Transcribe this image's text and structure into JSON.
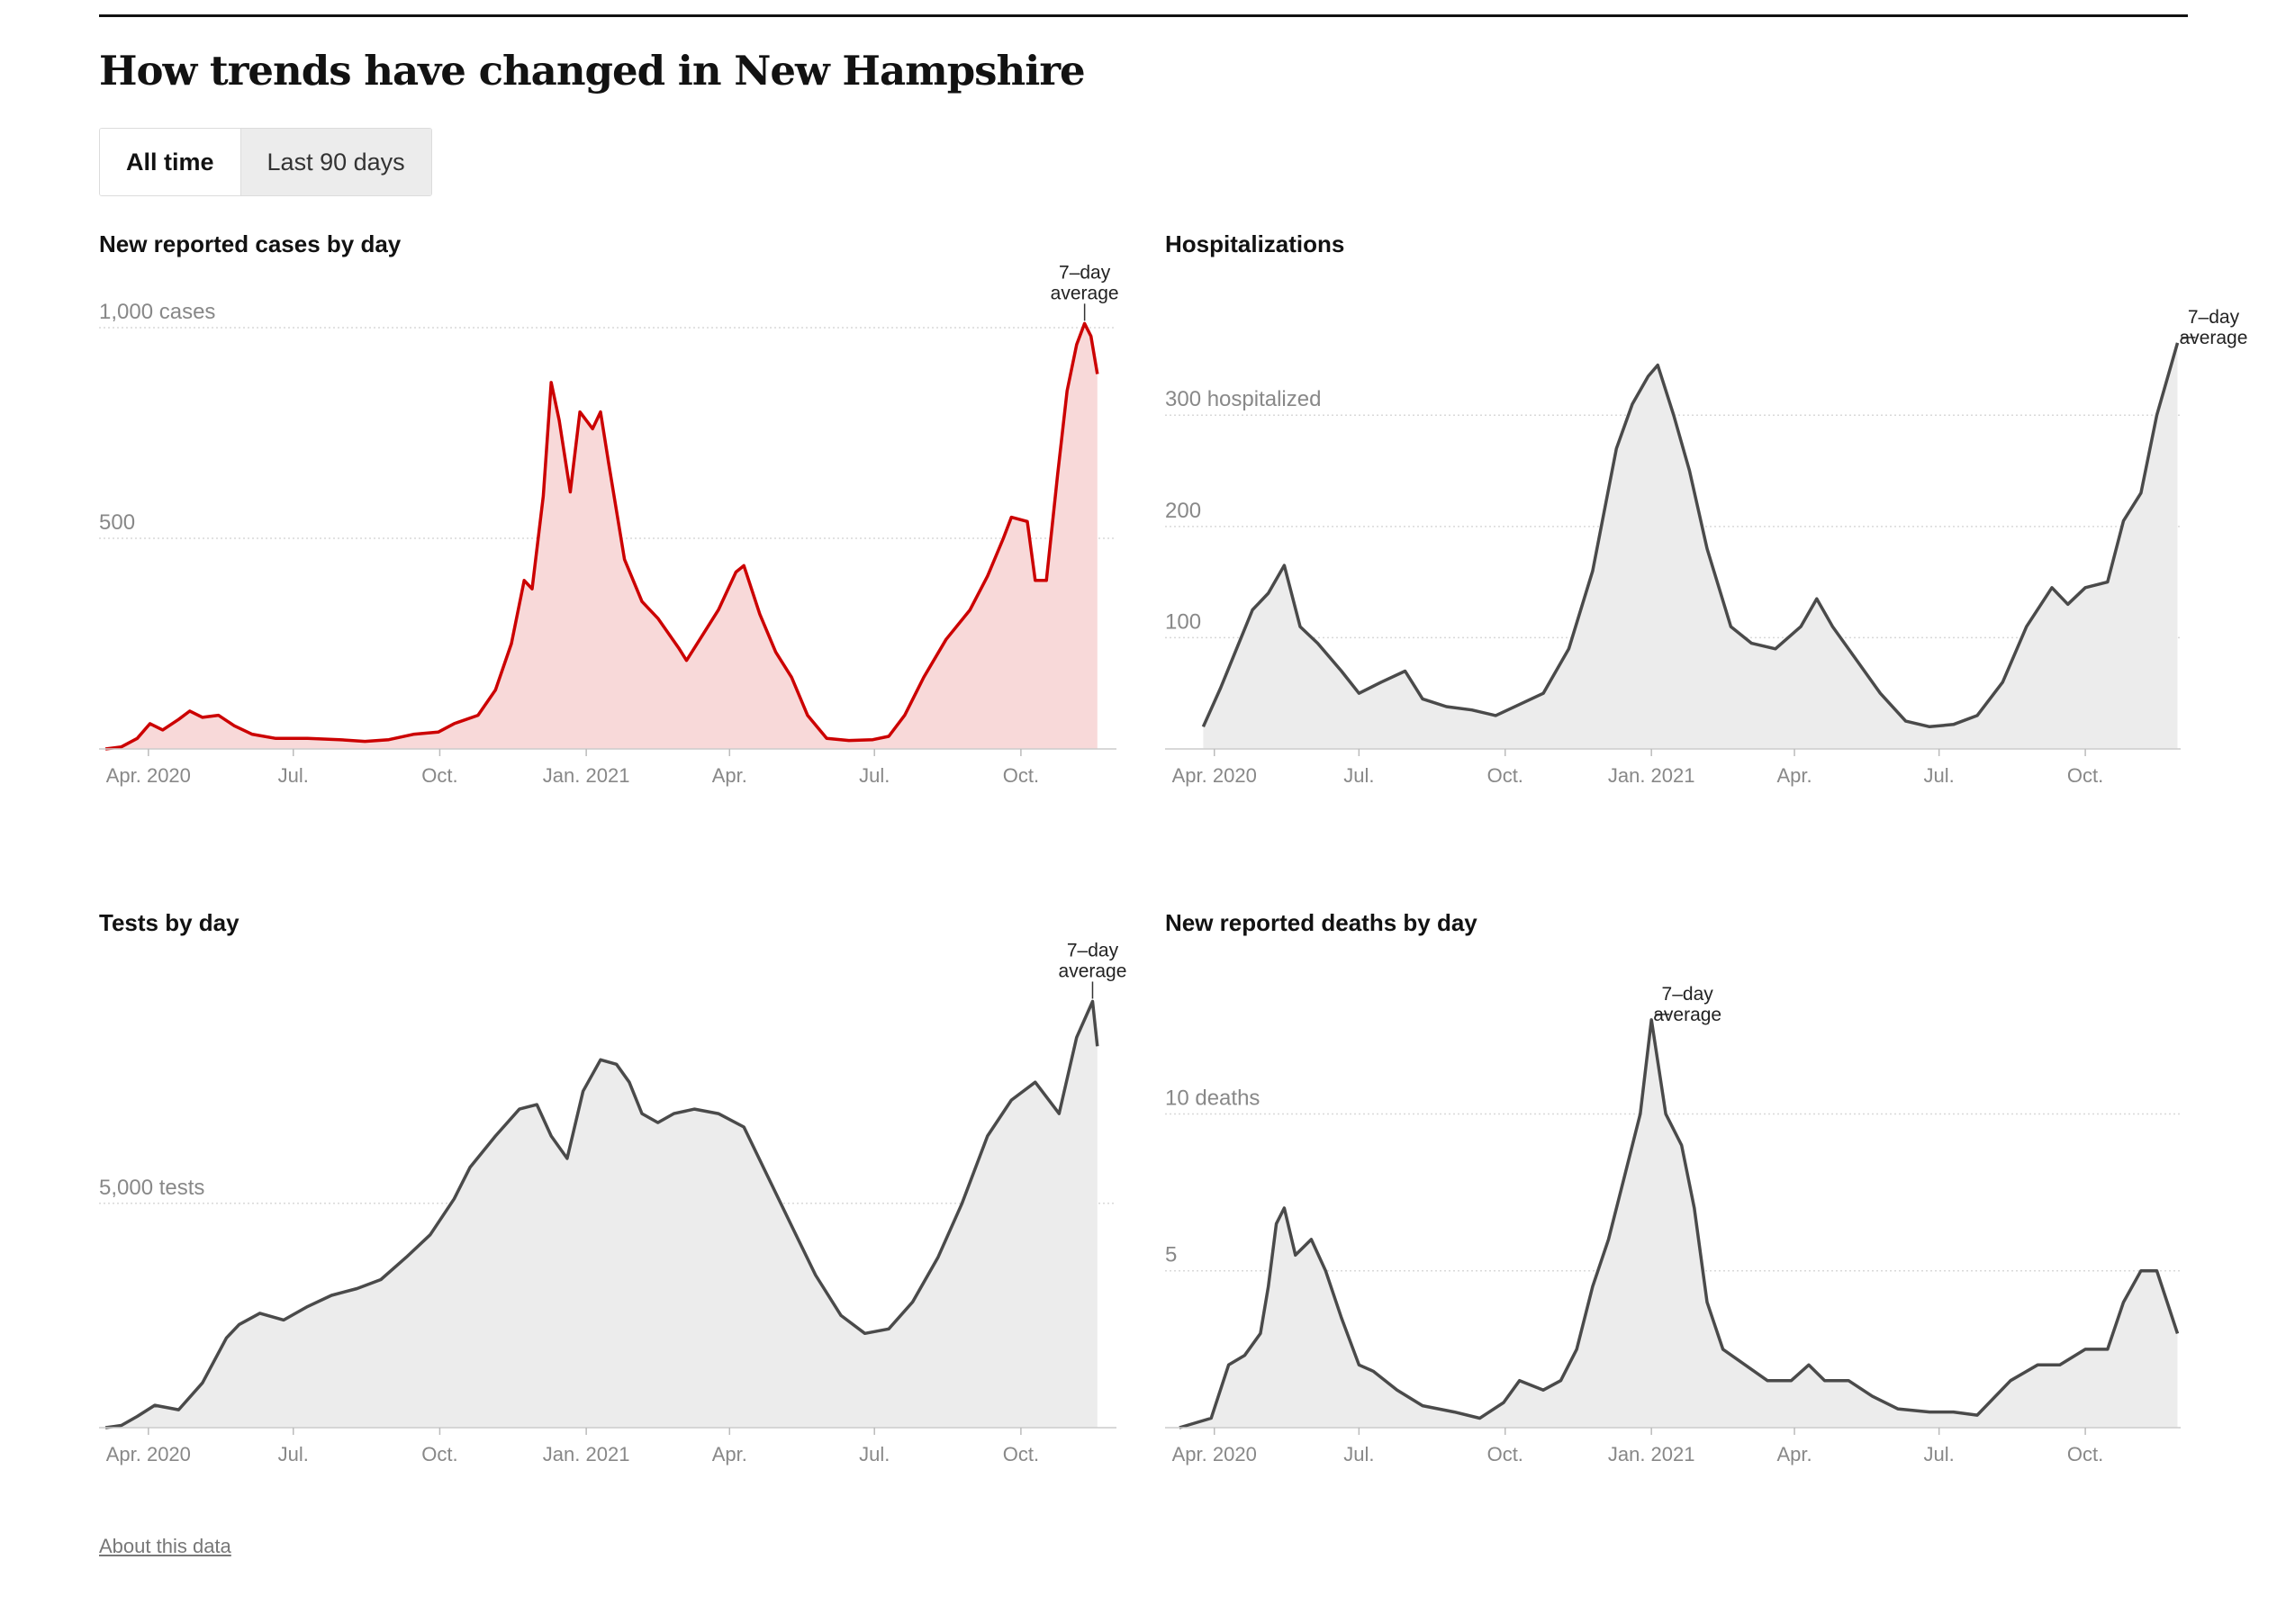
{
  "title": "How trends have changed in New Hampshire",
  "toggle": {
    "all_time": "All time",
    "last_90": "Last 90 days"
  },
  "about_link": "About this data",
  "annotation": [
    "7–day",
    "average"
  ],
  "colors": {
    "red_line": "#cc0000",
    "red_fill": "#f8d9d9",
    "gray_line": "#4a4a4a",
    "gray_fill": "#ececec",
    "grid": "#d9d9d9",
    "axis_text": "#888888"
  },
  "x_ticks": [
    "Apr. 2020",
    "Jul.",
    "Oct.",
    "Jan. 2021",
    "Apr.",
    "Jul.",
    "Oct."
  ],
  "chart_data": [
    {
      "id": "cases",
      "type": "area",
      "title": "New reported cases by day",
      "y_ticks": [
        {
          "value": 500,
          "label": "500"
        },
        {
          "value": 1000,
          "label": "1,000 cases"
        }
      ],
      "ylim": [
        0,
        1030
      ],
      "x_start": "2020-03-01",
      "x_end": "2021-11-30",
      "color": "red",
      "annotation_index": 3,
      "points": [
        [
          "2020-03-05",
          0
        ],
        [
          "2020-03-15",
          5
        ],
        [
          "2020-03-25",
          25
        ],
        [
          "2020-04-02",
          60
        ],
        [
          "2020-04-10",
          45
        ],
        [
          "2020-04-20",
          70
        ],
        [
          "2020-04-27",
          90
        ],
        [
          "2020-05-05",
          75
        ],
        [
          "2020-05-15",
          80
        ],
        [
          "2020-05-25",
          55
        ],
        [
          "2020-06-05",
          35
        ],
        [
          "2020-06-20",
          25
        ],
        [
          "2020-07-10",
          25
        ],
        [
          "2020-07-30",
          22
        ],
        [
          "2020-08-15",
          18
        ],
        [
          "2020-08-30",
          22
        ],
        [
          "2020-09-15",
          35
        ],
        [
          "2020-09-30",
          40
        ],
        [
          "2020-10-10",
          60
        ],
        [
          "2020-10-25",
          80
        ],
        [
          "2020-11-05",
          140
        ],
        [
          "2020-11-15",
          250
        ],
        [
          "2020-11-23",
          400
        ],
        [
          "2020-11-28",
          380
        ],
        [
          "2020-12-05",
          600
        ],
        [
          "2020-12-10",
          870
        ],
        [
          "2020-12-15",
          780
        ],
        [
          "2020-12-22",
          610
        ],
        [
          "2020-12-28",
          800
        ],
        [
          "2021-01-05",
          760
        ],
        [
          "2021-01-10",
          800
        ],
        [
          "2021-01-15",
          680
        ],
        [
          "2021-01-25",
          450
        ],
        [
          "2021-02-05",
          350
        ],
        [
          "2021-02-15",
          310
        ],
        [
          "2021-02-28",
          240
        ],
        [
          "2021-03-05",
          210
        ],
        [
          "2021-03-15",
          270
        ],
        [
          "2021-03-25",
          330
        ],
        [
          "2021-04-05",
          420
        ],
        [
          "2021-04-10",
          435
        ],
        [
          "2021-04-20",
          320
        ],
        [
          "2021-04-30",
          230
        ],
        [
          "2021-05-10",
          170
        ],
        [
          "2021-05-20",
          80
        ],
        [
          "2021-06-01",
          25
        ],
        [
          "2021-06-15",
          20
        ],
        [
          "2021-06-30",
          22
        ],
        [
          "2021-07-10",
          30
        ],
        [
          "2021-07-20",
          80
        ],
        [
          "2021-08-01",
          170
        ],
        [
          "2021-08-15",
          260
        ],
        [
          "2021-08-30",
          330
        ],
        [
          "2021-09-10",
          410
        ],
        [
          "2021-09-20",
          500
        ],
        [
          "2021-09-25",
          550
        ],
        [
          "2021-10-05",
          540
        ],
        [
          "2021-10-10",
          400
        ],
        [
          "2021-10-17",
          400
        ],
        [
          "2021-10-24",
          650
        ],
        [
          "2021-10-30",
          850
        ],
        [
          "2021-11-05",
          960
        ],
        [
          "2021-11-10",
          1010
        ],
        [
          "2021-11-14",
          980
        ],
        [
          "2021-11-18",
          890
        ]
      ]
    },
    {
      "id": "hospitalizations",
      "type": "area",
      "title": "Hospitalizations",
      "y_ticks": [
        {
          "value": 100,
          "label": "100"
        },
        {
          "value": 200,
          "label": "200"
        },
        {
          "value": 300,
          "label": "300 hospitalized"
        }
      ],
      "ylim": [
        0,
        390
      ],
      "x_start": "2020-03-01",
      "x_end": "2021-11-30",
      "color": "gray",
      "annotation_index": 3,
      "points": [
        [
          "2020-03-25",
          20
        ],
        [
          "2020-04-05",
          55
        ],
        [
          "2020-04-15",
          90
        ],
        [
          "2020-04-25",
          125
        ],
        [
          "2020-05-05",
          140
        ],
        [
          "2020-05-15",
          165
        ],
        [
          "2020-05-25",
          110
        ],
        [
          "2020-06-05",
          95
        ],
        [
          "2020-06-20",
          70
        ],
        [
          "2020-07-01",
          50
        ],
        [
          "2020-07-15",
          60
        ],
        [
          "2020-07-30",
          70
        ],
        [
          "2020-08-10",
          45
        ],
        [
          "2020-08-25",
          38
        ],
        [
          "2020-09-10",
          35
        ],
        [
          "2020-09-25",
          30
        ],
        [
          "2020-10-10",
          40
        ],
        [
          "2020-10-25",
          50
        ],
        [
          "2020-11-10",
          90
        ],
        [
          "2020-11-25",
          160
        ],
        [
          "2020-12-10",
          270
        ],
        [
          "2020-12-20",
          310
        ],
        [
          "2020-12-30",
          335
        ],
        [
          "2021-01-05",
          345
        ],
        [
          "2021-01-15",
          300
        ],
        [
          "2021-01-25",
          250
        ],
        [
          "2021-02-05",
          180
        ],
        [
          "2021-02-20",
          110
        ],
        [
          "2021-03-05",
          95
        ],
        [
          "2021-03-20",
          90
        ],
        [
          "2021-04-05",
          110
        ],
        [
          "2021-04-15",
          135
        ],
        [
          "2021-04-25",
          110
        ],
        [
          "2021-05-10",
          80
        ],
        [
          "2021-05-25",
          50
        ],
        [
          "2021-06-10",
          25
        ],
        [
          "2021-06-25",
          20
        ],
        [
          "2021-07-10",
          22
        ],
        [
          "2021-07-25",
          30
        ],
        [
          "2021-08-10",
          60
        ],
        [
          "2021-08-25",
          110
        ],
        [
          "2021-09-10",
          145
        ],
        [
          "2021-09-20",
          130
        ],
        [
          "2021-10-01",
          145
        ],
        [
          "2021-10-15",
          150
        ],
        [
          "2021-10-25",
          205
        ],
        [
          "2021-11-05",
          230
        ],
        [
          "2021-11-15",
          300
        ],
        [
          "2021-11-28",
          365
        ]
      ]
    },
    {
      "id": "tests",
      "type": "area",
      "title": "Tests by day",
      "y_ticks": [
        {
          "value": 5000,
          "label": "5,000 tests"
        }
      ],
      "ylim": [
        0,
        9650
      ],
      "x_start": "2020-03-01",
      "x_end": "2021-11-30",
      "color": "gray",
      "annotation_index": 3,
      "points": [
        [
          "2020-03-05",
          0
        ],
        [
          "2020-03-15",
          50
        ],
        [
          "2020-03-25",
          250
        ],
        [
          "2020-04-05",
          500
        ],
        [
          "2020-04-20",
          400
        ],
        [
          "2020-05-05",
          1000
        ],
        [
          "2020-05-20",
          2000
        ],
        [
          "2020-05-28",
          2300
        ],
        [
          "2020-06-10",
          2550
        ],
        [
          "2020-06-25",
          2400
        ],
        [
          "2020-07-10",
          2700
        ],
        [
          "2020-07-25",
          2950
        ],
        [
          "2020-08-10",
          3100
        ],
        [
          "2020-08-25",
          3300
        ],
        [
          "2020-09-10",
          3800
        ],
        [
          "2020-09-25",
          4300
        ],
        [
          "2020-10-10",
          5100
        ],
        [
          "2020-10-20",
          5800
        ],
        [
          "2020-11-05",
          6500
        ],
        [
          "2020-11-20",
          7100
        ],
        [
          "2020-12-01",
          7200
        ],
        [
          "2020-12-10",
          6500
        ],
        [
          "2020-12-20",
          6000
        ],
        [
          "2020-12-30",
          7500
        ],
        [
          "2021-01-10",
          8200
        ],
        [
          "2021-01-20",
          8100
        ],
        [
          "2021-01-28",
          7700
        ],
        [
          "2021-02-05",
          7000
        ],
        [
          "2021-02-15",
          6800
        ],
        [
          "2021-02-25",
          7000
        ],
        [
          "2021-03-10",
          7100
        ],
        [
          "2021-03-25",
          7000
        ],
        [
          "2021-04-10",
          6700
        ],
        [
          "2021-04-25",
          5600
        ],
        [
          "2021-05-10",
          4500
        ],
        [
          "2021-05-25",
          3400
        ],
        [
          "2021-06-10",
          2500
        ],
        [
          "2021-06-25",
          2100
        ],
        [
          "2021-07-10",
          2200
        ],
        [
          "2021-07-25",
          2800
        ],
        [
          "2021-08-10",
          3800
        ],
        [
          "2021-08-25",
          5000
        ],
        [
          "2021-09-10",
          6500
        ],
        [
          "2021-09-25",
          7300
        ],
        [
          "2021-10-10",
          7700
        ],
        [
          "2021-10-25",
          7000
        ],
        [
          "2021-11-05",
          8700
        ],
        [
          "2021-11-15",
          9500
        ],
        [
          "2021-11-18",
          8500
        ]
      ]
    },
    {
      "id": "deaths",
      "type": "area",
      "title": "New reported deaths by day",
      "y_ticks": [
        {
          "value": 5,
          "label": "5"
        },
        {
          "value": 10,
          "label": "10 deaths"
        }
      ],
      "ylim": [
        0,
        13.8
      ],
      "x_start": "2020-03-01",
      "x_end": "2021-11-30",
      "color": "gray",
      "annotation_index": 3,
      "points": [
        [
          "2020-03-10",
          0
        ],
        [
          "2020-03-30",
          0.3
        ],
        [
          "2020-04-10",
          2
        ],
        [
          "2020-04-20",
          2.3
        ],
        [
          "2020-04-30",
          3
        ],
        [
          "2020-05-05",
          4.5
        ],
        [
          "2020-05-10",
          6.5
        ],
        [
          "2020-05-15",
          7
        ],
        [
          "2020-05-22",
          5.5
        ],
        [
          "2020-06-01",
          6
        ],
        [
          "2020-06-10",
          5
        ],
        [
          "2020-06-20",
          3.5
        ],
        [
          "2020-07-01",
          2
        ],
        [
          "2020-07-10",
          1.8
        ],
        [
          "2020-07-25",
          1.2
        ],
        [
          "2020-08-10",
          0.7
        ],
        [
          "2020-08-30",
          0.5
        ],
        [
          "2020-09-15",
          0.3
        ],
        [
          "2020-09-30",
          0.8
        ],
        [
          "2020-10-10",
          1.5
        ],
        [
          "2020-10-25",
          1.2
        ],
        [
          "2020-11-05",
          1.5
        ],
        [
          "2020-11-15",
          2.5
        ],
        [
          "2020-11-25",
          4.5
        ],
        [
          "2020-12-05",
          6
        ],
        [
          "2020-12-15",
          8
        ],
        [
          "2020-12-25",
          10
        ],
        [
          "2021-01-01",
          13
        ],
        [
          "2021-01-10",
          10
        ],
        [
          "2021-01-20",
          9
        ],
        [
          "2021-01-28",
          7
        ],
        [
          "2021-02-05",
          4
        ],
        [
          "2021-02-15",
          2.5
        ],
        [
          "2021-03-01",
          2
        ],
        [
          "2021-03-15",
          1.5
        ],
        [
          "2021-03-30",
          1.5
        ],
        [
          "2021-04-10",
          2
        ],
        [
          "2021-04-20",
          1.5
        ],
        [
          "2021-05-05",
          1.5
        ],
        [
          "2021-05-20",
          1
        ],
        [
          "2021-06-05",
          0.6
        ],
        [
          "2021-06-25",
          0.5
        ],
        [
          "2021-07-10",
          0.5
        ],
        [
          "2021-07-25",
          0.4
        ],
        [
          "2021-08-15",
          1.5
        ],
        [
          "2021-09-01",
          2
        ],
        [
          "2021-09-15",
          2
        ],
        [
          "2021-10-01",
          2.5
        ],
        [
          "2021-10-15",
          2.5
        ],
        [
          "2021-10-25",
          4
        ],
        [
          "2021-11-05",
          5
        ],
        [
          "2021-11-15",
          5
        ],
        [
          "2021-11-28",
          3
        ]
      ]
    }
  ]
}
